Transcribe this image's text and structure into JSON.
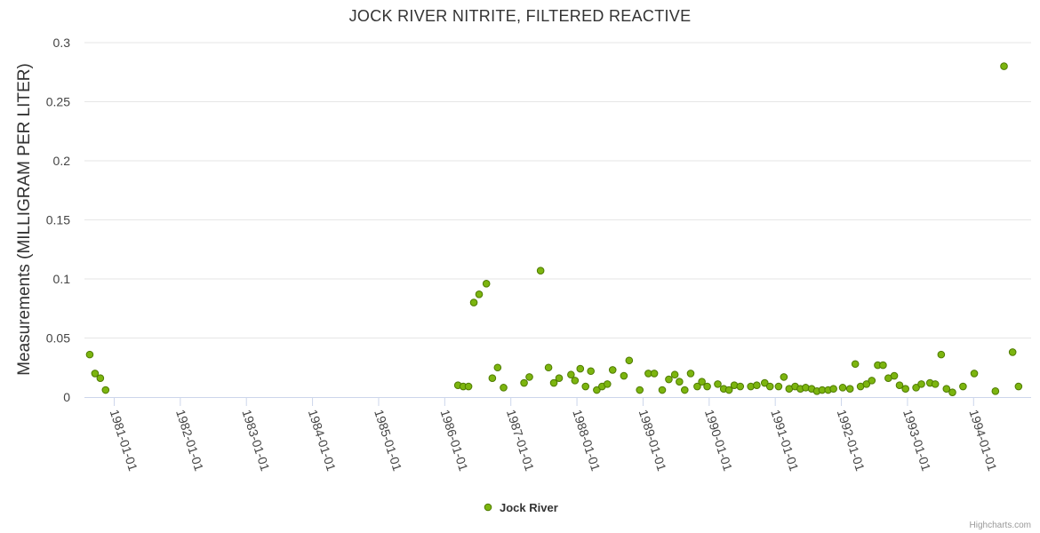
{
  "chart_data": {
    "type": "scatter",
    "title": "JOCK RIVER NITRITE, FILTERED REACTIVE",
    "xlabel": "",
    "ylabel": "Measurements (MILLIGRAM PER LITER)",
    "xlim": [
      1980.55,
      1994.87
    ],
    "ylim": [
      0,
      0.3
    ],
    "y_ticks": [
      "0",
      "0.05",
      "0.1",
      "0.15",
      "0.2",
      "0.25",
      "0.3"
    ],
    "x_ticks": [
      "1981-01-01",
      "1982-01-01",
      "1983-01-01",
      "1984-01-01",
      "1985-01-01",
      "1986-01-01",
      "1987-01-01",
      "1988-01-01",
      "1989-01-01",
      "1990-01-01",
      "1991-01-01",
      "1992-01-01",
      "1993-01-01",
      "1994-01-01"
    ],
    "colors": {
      "marker_fill": "#7cb50f",
      "marker_stroke": "#4e7a00"
    },
    "legend": {
      "position": "bottom-center"
    },
    "series": [
      {
        "name": "Jock River",
        "points": [
          [
            1980.63,
            0.036
          ],
          [
            1980.71,
            0.02
          ],
          [
            1980.79,
            0.016
          ],
          [
            1980.87,
            0.006
          ],
          [
            1986.2,
            0.01
          ],
          [
            1986.28,
            0.009
          ],
          [
            1986.36,
            0.009
          ],
          [
            1986.44,
            0.08
          ],
          [
            1986.52,
            0.087
          ],
          [
            1986.63,
            0.096
          ],
          [
            1986.72,
            0.016
          ],
          [
            1986.8,
            0.025
          ],
          [
            1986.89,
            0.008
          ],
          [
            1987.2,
            0.012
          ],
          [
            1987.28,
            0.017
          ],
          [
            1987.45,
            0.107
          ],
          [
            1987.57,
            0.025
          ],
          [
            1987.65,
            0.012
          ],
          [
            1987.73,
            0.016
          ],
          [
            1987.91,
            0.019
          ],
          [
            1987.97,
            0.014
          ],
          [
            1988.05,
            0.024
          ],
          [
            1988.13,
            0.009
          ],
          [
            1988.21,
            0.022
          ],
          [
            1988.3,
            0.006
          ],
          [
            1988.38,
            0.009
          ],
          [
            1988.46,
            0.011
          ],
          [
            1988.54,
            0.023
          ],
          [
            1988.71,
            0.018
          ],
          [
            1988.79,
            0.031
          ],
          [
            1988.95,
            0.006
          ],
          [
            1989.08,
            0.02
          ],
          [
            1989.17,
            0.02
          ],
          [
            1989.29,
            0.006
          ],
          [
            1989.39,
            0.015
          ],
          [
            1989.48,
            0.019
          ],
          [
            1989.55,
            0.013
          ],
          [
            1989.63,
            0.006
          ],
          [
            1989.72,
            0.02
          ],
          [
            1989.82,
            0.009
          ],
          [
            1989.89,
            0.013
          ],
          [
            1989.97,
            0.009
          ],
          [
            1990.13,
            0.011
          ],
          [
            1990.22,
            0.007
          ],
          [
            1990.3,
            0.006
          ],
          [
            1990.38,
            0.01
          ],
          [
            1990.47,
            0.009
          ],
          [
            1990.63,
            0.009
          ],
          [
            1990.72,
            0.01
          ],
          [
            1990.84,
            0.012
          ],
          [
            1990.92,
            0.009
          ],
          [
            1991.05,
            0.009
          ],
          [
            1991.13,
            0.017
          ],
          [
            1991.21,
            0.007
          ],
          [
            1991.3,
            0.009
          ],
          [
            1991.38,
            0.007
          ],
          [
            1991.46,
            0.008
          ],
          [
            1991.55,
            0.007
          ],
          [
            1991.63,
            0.005
          ],
          [
            1991.71,
            0.006
          ],
          [
            1991.8,
            0.006
          ],
          [
            1991.88,
            0.007
          ],
          [
            1992.02,
            0.008
          ],
          [
            1992.13,
            0.007
          ],
          [
            1992.21,
            0.028
          ],
          [
            1992.29,
            0.009
          ],
          [
            1992.38,
            0.011
          ],
          [
            1992.46,
            0.014
          ],
          [
            1992.55,
            0.027
          ],
          [
            1992.63,
            0.027
          ],
          [
            1992.71,
            0.016
          ],
          [
            1992.8,
            0.018
          ],
          [
            1992.88,
            0.01
          ],
          [
            1992.97,
            0.007
          ],
          [
            1993.13,
            0.008
          ],
          [
            1993.21,
            0.011
          ],
          [
            1993.34,
            0.012
          ],
          [
            1993.42,
            0.011
          ],
          [
            1993.51,
            0.036
          ],
          [
            1993.59,
            0.007
          ],
          [
            1993.68,
            0.004
          ],
          [
            1993.84,
            0.009
          ],
          [
            1994.01,
            0.02
          ],
          [
            1994.33,
            0.005
          ],
          [
            1994.46,
            0.28
          ],
          [
            1994.59,
            0.038
          ],
          [
            1994.68,
            0.009
          ]
        ]
      }
    ]
  },
  "credits": "Highcharts.com"
}
